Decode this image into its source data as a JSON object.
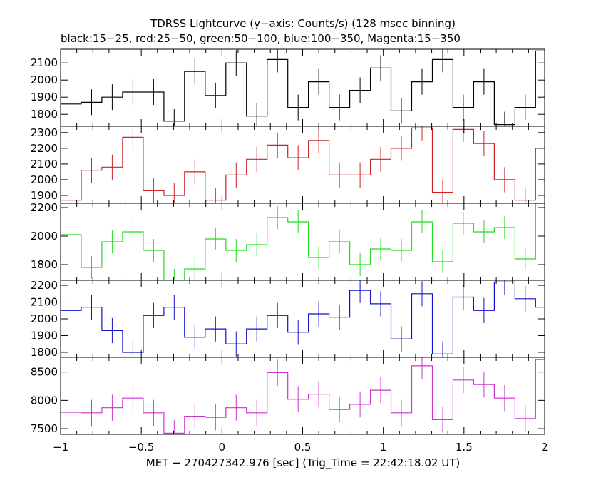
{
  "chart_data": {
    "type": "line",
    "title": "TDRSS Lightcurve (y−axis: Counts/s) (128 msec binning)",
    "subtitle": "black:15−25, red:25−50, green:50−100, blue:100−350, Magenta:15−350",
    "xlabel": "MET − 270427342.976 [sec] (Trig_Time = 22:42:18.02 UT)",
    "xlim": [
      -1,
      2
    ],
    "bin_width": 0.128,
    "x_ticks": [
      -1,
      -0.5,
      0,
      0.5,
      1,
      1.5,
      2
    ],
    "x_tick_labels": [
      "−1",
      "−0.5",
      "0",
      "0.5",
      "1",
      "1.5",
      "2"
    ],
    "bin_starts": [
      -1.0,
      -0.872,
      -0.744,
      -0.616,
      -0.488,
      -0.36,
      -0.232,
      -0.104,
      0.024,
      0.152,
      0.28,
      0.408,
      0.536,
      0.664,
      0.792,
      0.92,
      1.048,
      1.176,
      1.304,
      1.432,
      1.56,
      1.688,
      1.816,
      1.944
    ],
    "panels": [
      {
        "name": "black:15−25",
        "color": "#000000",
        "ylim": [
          1730,
          2180
        ],
        "y_ticks": [
          1800,
          1900,
          2000,
          2100
        ],
        "values": [
          1860,
          1870,
          1900,
          1930,
          1930,
          1760,
          2050,
          1910,
          2100,
          1790,
          2120,
          1840,
          1990,
          1840,
          1940,
          2070,
          1820,
          1990,
          2120,
          1840,
          1990,
          1740,
          1840,
          2170
        ],
        "errors": [
          75,
          75,
          75,
          75,
          75,
          70,
          75,
          75,
          75,
          75,
          75,
          75,
          75,
          75,
          75,
          75,
          75,
          75,
          75,
          75,
          75,
          75,
          75,
          75
        ]
      },
      {
        "name": "red:25−50",
        "color": "#cc2222",
        "ylim": [
          1850,
          2340
        ],
        "y_ticks": [
          1900,
          2000,
          2100,
          2200,
          2300
        ],
        "values": [
          1870,
          2060,
          2080,
          2270,
          1930,
          1900,
          2050,
          1870,
          2030,
          2130,
          2220,
          2140,
          2250,
          2030,
          2030,
          2130,
          2200,
          2330,
          1920,
          2320,
          2230,
          2000,
          1870,
          2200
        ],
        "errors": [
          80,
          80,
          80,
          80,
          80,
          80,
          80,
          80,
          80,
          80,
          80,
          80,
          80,
          80,
          80,
          80,
          80,
          80,
          80,
          80,
          80,
          80,
          80,
          80
        ]
      },
      {
        "name": "green:50−100",
        "color": "#22dd22",
        "ylim": [
          1690,
          2230
        ],
        "y_ticks": [
          1800,
          2000,
          2200
        ],
        "values": [
          2010,
          1780,
          1960,
          2030,
          1900,
          1690,
          1770,
          1980,
          1900,
          1940,
          2130,
          2100,
          1850,
          1960,
          1800,
          1910,
          1900,
          2100,
          1820,
          2090,
          2030,
          2060,
          1840,
          2230
        ],
        "errors": [
          80,
          80,
          80,
          80,
          80,
          80,
          80,
          80,
          80,
          80,
          80,
          80,
          80,
          80,
          80,
          80,
          80,
          80,
          80,
          80,
          80,
          80,
          80,
          80
        ]
      },
      {
        "name": "blue:100−350",
        "color": "#1111cc",
        "ylim": [
          1770,
          2230
        ],
        "y_ticks": [
          1800,
          1900,
          2000,
          2100,
          2200
        ],
        "values": [
          2050,
          2070,
          1930,
          1800,
          2020,
          2070,
          1890,
          1940,
          1850,
          1940,
          2020,
          1920,
          2030,
          2010,
          2170,
          2090,
          1880,
          2150,
          1790,
          2130,
          2050,
          2220,
          2120,
          2070
        ],
        "errors": [
          75,
          75,
          75,
          75,
          75,
          75,
          75,
          75,
          75,
          75,
          75,
          75,
          75,
          75,
          75,
          75,
          75,
          75,
          75,
          75,
          75,
          75,
          75,
          75
        ]
      },
      {
        "name": "Magenta:15−350",
        "color": "#cc33cc",
        "ylim": [
          7400,
          8760
        ],
        "y_ticks": [
          7500,
          8000,
          8500
        ],
        "values": [
          7790,
          7780,
          7870,
          8040,
          7780,
          7420,
          7720,
          7700,
          7870,
          7780,
          8490,
          8020,
          8110,
          7840,
          7930,
          8180,
          7780,
          8610,
          7660,
          8360,
          8280,
          8040,
          7680,
          8720
        ],
        "errors": [
          230,
          230,
          230,
          230,
          230,
          230,
          230,
          230,
          230,
          230,
          230,
          230,
          230,
          230,
          230,
          230,
          230,
          230,
          230,
          230,
          230,
          230,
          230,
          230
        ]
      }
    ]
  }
}
